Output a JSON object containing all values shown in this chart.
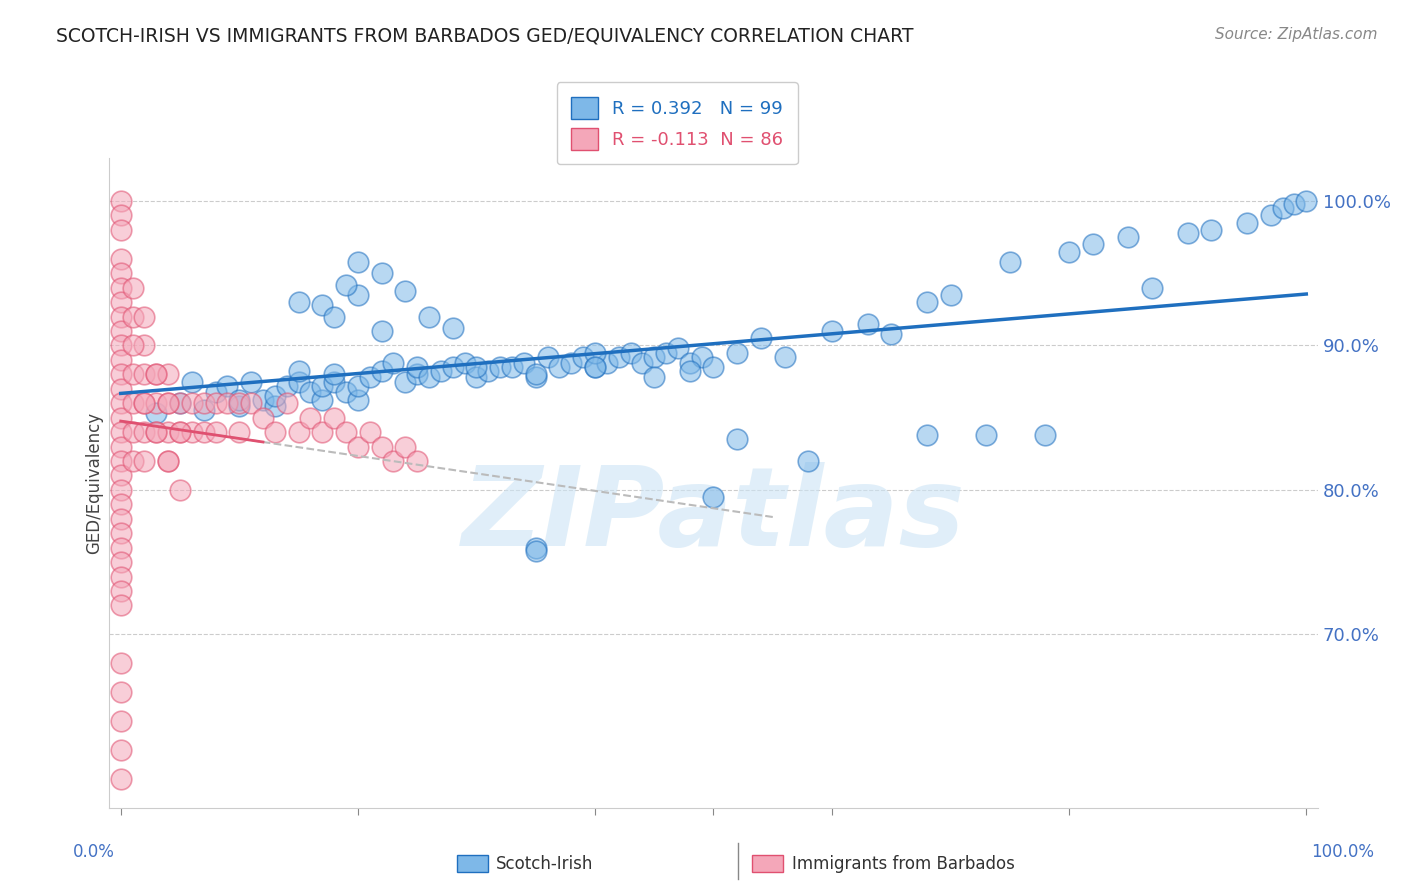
{
  "title": "SCOTCH-IRISH VS IMMIGRANTS FROM BARBADOS GED/EQUIVALENCY CORRELATION CHART",
  "source": "Source: ZipAtlas.com",
  "ylabel": "GED/Equivalency",
  "ytick_labels": [
    "70.0%",
    "80.0%",
    "90.0%",
    "100.0%"
  ],
  "ytick_values": [
    0.7,
    0.8,
    0.9,
    1.0
  ],
  "blue_R": 0.392,
  "blue_N": 99,
  "pink_R": -0.113,
  "pink_N": 86,
  "blue_color": "#7eb8e8",
  "blue_line_color": "#1f6fbf",
  "pink_color": "#f4a7b9",
  "pink_line_color": "#e05070",
  "background_color": "#ffffff",
  "grid_color": "#cccccc",
  "legend_label_blue": "Scotch-Irish",
  "legend_label_pink": "Immigrants from Barbados",
  "watermark": "ZIPatlas",
  "title_color": "#222222",
  "axis_color": "#4472c4",
  "blue_x": [
    0.03,
    0.05,
    0.06,
    0.07,
    0.08,
    0.09,
    0.1,
    0.1,
    0.11,
    0.12,
    0.13,
    0.13,
    0.14,
    0.15,
    0.15,
    0.16,
    0.17,
    0.17,
    0.18,
    0.18,
    0.19,
    0.2,
    0.2,
    0.21,
    0.22,
    0.23,
    0.24,
    0.25,
    0.25,
    0.26,
    0.27,
    0.28,
    0.29,
    0.3,
    0.31,
    0.32,
    0.33,
    0.34,
    0.35,
    0.36,
    0.37,
    0.38,
    0.39,
    0.4,
    0.41,
    0.42,
    0.43,
    0.44,
    0.45,
    0.46,
    0.47,
    0.48,
    0.49,
    0.5,
    0.52,
    0.54,
    0.56,
    0.6,
    0.63,
    0.65,
    0.68,
    0.7,
    0.75,
    0.8,
    0.82,
    0.85,
    0.87,
    0.9,
    0.92,
    0.95,
    0.97,
    0.98,
    0.99,
    1.0,
    0.3,
    0.35,
    0.4,
    0.4,
    0.45,
    0.48,
    0.5,
    0.35,
    0.35,
    0.2,
    0.22,
    0.68,
    0.73,
    0.78,
    0.58,
    0.52,
    0.15,
    0.17,
    0.18,
    0.19,
    0.2,
    0.22,
    0.24,
    0.26,
    0.28
  ],
  "blue_y": [
    0.853,
    0.86,
    0.875,
    0.855,
    0.868,
    0.872,
    0.858,
    0.862,
    0.875,
    0.862,
    0.858,
    0.865,
    0.872,
    0.875,
    0.882,
    0.868,
    0.862,
    0.872,
    0.875,
    0.88,
    0.868,
    0.862,
    0.872,
    0.878,
    0.882,
    0.888,
    0.875,
    0.88,
    0.885,
    0.878,
    0.882,
    0.885,
    0.888,
    0.878,
    0.882,
    0.885,
    0.885,
    0.888,
    0.878,
    0.892,
    0.885,
    0.888,
    0.892,
    0.885,
    0.888,
    0.892,
    0.895,
    0.888,
    0.892,
    0.895,
    0.898,
    0.888,
    0.892,
    0.885,
    0.895,
    0.905,
    0.892,
    0.91,
    0.915,
    0.908,
    0.93,
    0.935,
    0.958,
    0.965,
    0.97,
    0.975,
    0.94,
    0.978,
    0.98,
    0.985,
    0.99,
    0.995,
    0.998,
    1.0,
    0.885,
    0.88,
    0.895,
    0.885,
    0.878,
    0.882,
    0.795,
    0.76,
    0.758,
    0.935,
    0.91,
    0.838,
    0.838,
    0.838,
    0.82,
    0.835,
    0.93,
    0.928,
    0.92,
    0.942,
    0.958,
    0.95,
    0.938,
    0.92,
    0.912
  ],
  "pink_x": [
    0.0,
    0.0,
    0.0,
    0.0,
    0.0,
    0.0,
    0.0,
    0.0,
    0.0,
    0.0,
    0.0,
    0.0,
    0.0,
    0.0,
    0.0,
    0.0,
    0.0,
    0.0,
    0.0,
    0.0,
    0.0,
    0.0,
    0.0,
    0.0,
    0.0,
    0.0,
    0.0,
    0.0,
    0.01,
    0.01,
    0.01,
    0.01,
    0.01,
    0.02,
    0.02,
    0.02,
    0.02,
    0.02,
    0.03,
    0.03,
    0.03,
    0.04,
    0.04,
    0.04,
    0.04,
    0.05,
    0.05,
    0.06,
    0.06,
    0.07,
    0.07,
    0.08,
    0.08,
    0.09,
    0.1,
    0.1,
    0.11,
    0.12,
    0.13,
    0.14,
    0.15,
    0.16,
    0.17,
    0.18,
    0.19,
    0.2,
    0.21,
    0.22,
    0.23,
    0.24,
    0.25,
    0.01,
    0.01,
    0.02,
    0.02,
    0.03,
    0.03,
    0.04,
    0.04,
    0.05,
    0.05,
    0.0,
    0.0,
    0.0,
    0.0,
    0.0
  ],
  "pink_y": [
    1.0,
    0.99,
    0.98,
    0.96,
    0.95,
    0.94,
    0.93,
    0.92,
    0.91,
    0.9,
    0.89,
    0.88,
    0.87,
    0.86,
    0.85,
    0.84,
    0.83,
    0.82,
    0.81,
    0.8,
    0.79,
    0.78,
    0.77,
    0.76,
    0.75,
    0.74,
    0.73,
    0.72,
    0.92,
    0.88,
    0.86,
    0.84,
    0.82,
    0.9,
    0.88,
    0.86,
    0.84,
    0.82,
    0.88,
    0.86,
    0.84,
    0.88,
    0.86,
    0.84,
    0.82,
    0.86,
    0.84,
    0.86,
    0.84,
    0.86,
    0.84,
    0.86,
    0.84,
    0.86,
    0.86,
    0.84,
    0.86,
    0.85,
    0.84,
    0.86,
    0.84,
    0.85,
    0.84,
    0.85,
    0.84,
    0.83,
    0.84,
    0.83,
    0.82,
    0.83,
    0.82,
    0.94,
    0.9,
    0.92,
    0.86,
    0.88,
    0.84,
    0.86,
    0.82,
    0.84,
    0.8,
    0.68,
    0.66,
    0.64,
    0.62,
    0.6
  ]
}
